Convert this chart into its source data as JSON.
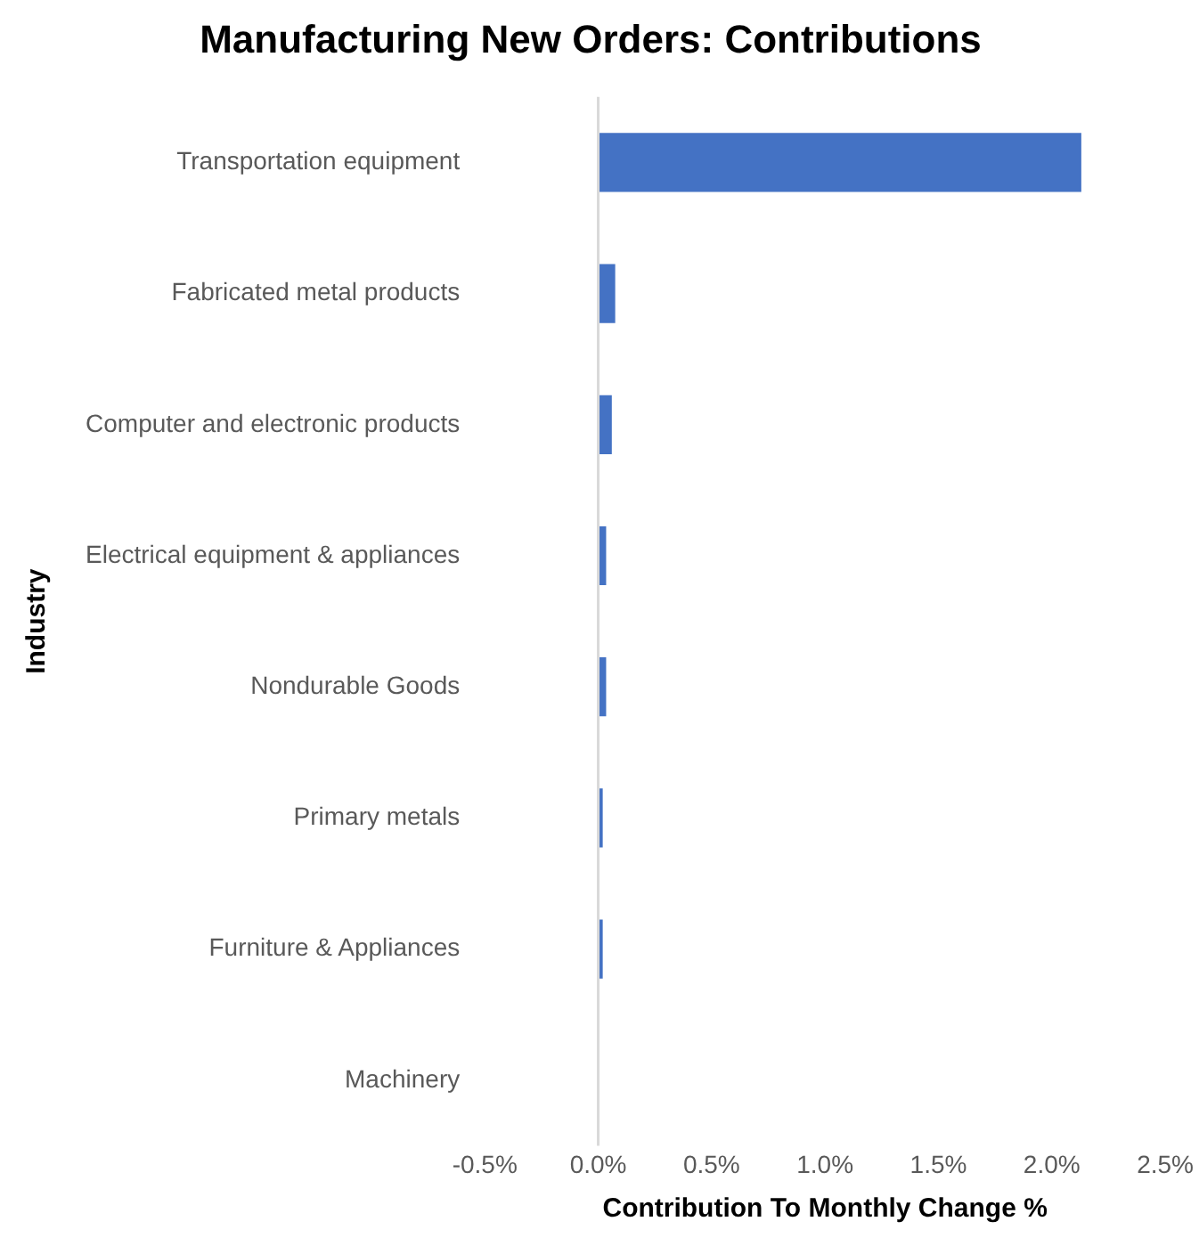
{
  "chart_data": {
    "type": "bar",
    "orientation": "horizontal",
    "title": "Manufacturing New Orders: Contributions",
    "xlabel": "Contribution To Monthly Change %",
    "ylabel": "Industry",
    "categories": [
      "Transportation equipment",
      "Fabricated metal products",
      "Computer and electronic products",
      "Electrical equipment & appliances",
      "Nondurable Goods",
      "Primary metals",
      "Furniture & Appliances",
      "Machinery"
    ],
    "values": [
      2.13,
      0.075,
      0.06,
      0.035,
      0.035,
      0.02,
      0.02,
      0
    ],
    "color": "#4472c4",
    "xlim": [
      -0.5,
      2.5
    ],
    "xticks": [
      {
        "value": -0.5,
        "label": "-0.5%"
      },
      {
        "value": 0,
        "label": "0.0%"
      },
      {
        "value": 0.5,
        "label": "0.5%"
      },
      {
        "value": 1,
        "label": "1.0%"
      },
      {
        "value": 1.5,
        "label": "1.5%"
      },
      {
        "value": 2,
        "label": "2.0%"
      },
      {
        "value": 2.5,
        "label": "2.5%"
      }
    ],
    "ref_lines": [
      {
        "axis": "x",
        "value": 0,
        "color": "#d9d9d9"
      }
    ],
    "legend": false
  }
}
